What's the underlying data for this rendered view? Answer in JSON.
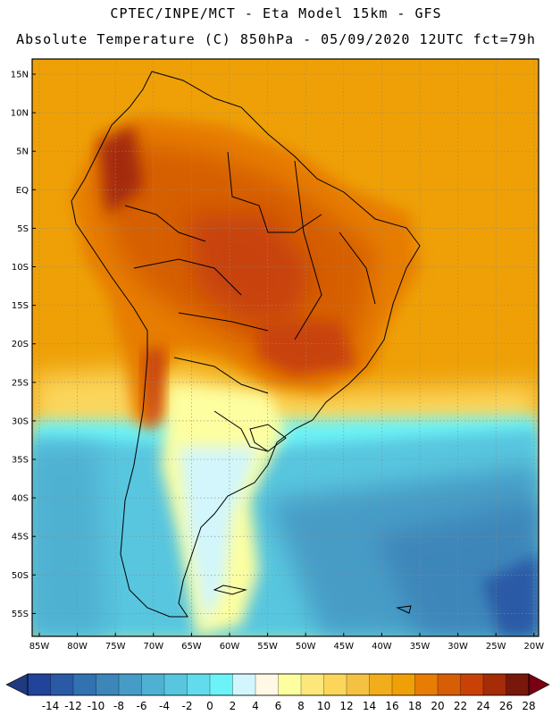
{
  "title": {
    "line1": "CPTEC/INPE/MCT -  Eta Model 15km - GFS",
    "line2": "Absolute Temperature (C) 850hPa - 05/09/2020 12UTC fct=79h"
  },
  "map": {
    "lat_labels": [
      "15N",
      "10N",
      "5N",
      "EQ",
      "5S",
      "10S",
      "15S",
      "20S",
      "25S",
      "30S",
      "35S",
      "40S",
      "45S",
      "50S",
      "55S"
    ],
    "lon_labels": [
      "85W",
      "80W",
      "75W",
      "70W",
      "65W",
      "60W",
      "55W",
      "50W",
      "45W",
      "40W",
      "35W",
      "30W",
      "25W",
      "20W"
    ]
  },
  "colorbar": {
    "labels": [
      "-14",
      "-12",
      "-10",
      "-8",
      "-6",
      "-4",
      "-2",
      "0",
      "2",
      "4",
      "6",
      "8",
      "10",
      "12",
      "14",
      "16",
      "18",
      "20",
      "22",
      "24",
      "26",
      "28"
    ],
    "colors": [
      "#21439a",
      "#2a5aa6",
      "#3372b0",
      "#3c86ba",
      "#469cc6",
      "#4fb1d2",
      "#58c6df",
      "#62dcec",
      "#6cf3f7",
      "#d2f6fb",
      "#fff8e4",
      "#fdfea0",
      "#fce87a",
      "#fbd65b",
      "#f5c143",
      "#f2ad1d",
      "#eea006",
      "#e77d04",
      "#d65e04",
      "#c84207",
      "#a42c07",
      "#78180a"
    ],
    "under_color": "#20397f",
    "over_color": "#780011"
  },
  "field_colors": {
    "ocean_north": "#eea006",
    "land_hot": "#d65e04",
    "land_hotter": "#c84207",
    "mid": "#f2ad1d",
    "warm_yellow": "#fbd65b",
    "pale": "#fff8e4",
    "cyan": "#58c6df",
    "blue": "#469cc6",
    "dark_blue": "#3c86ba"
  }
}
